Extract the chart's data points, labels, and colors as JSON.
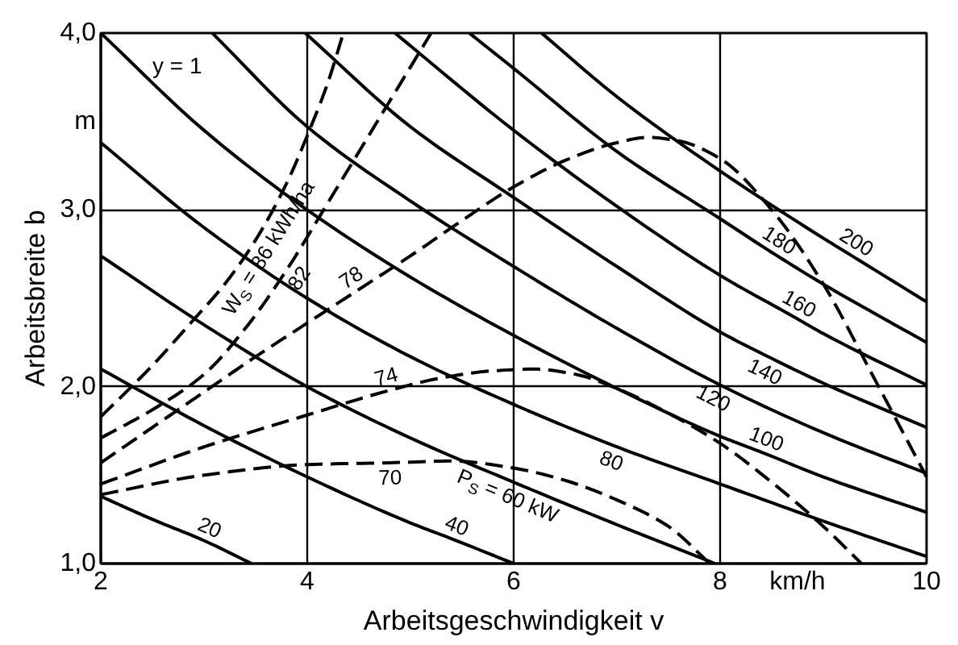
{
  "chart_data": {
    "type": "line",
    "xlabel": "Arbeitsgeschwindigkeit v",
    "ylabel": "Arbeitsbreite b",
    "xlim": [
      2,
      10
    ],
    "ylim": [
      1,
      4
    ],
    "xticks": [
      2,
      4,
      6,
      8,
      {
        "value": 8.75,
        "label": "km/h"
      },
      10
    ],
    "yticks": [
      {
        "value": 1,
        "label": "1,0"
      },
      {
        "value": 2,
        "label": "2,0"
      },
      {
        "value": 3,
        "label": "3,0"
      },
      {
        "value": 3.5,
        "label": "m"
      },
      {
        "value": 4,
        "label": "4,0"
      }
    ],
    "grid": true,
    "series": [
      {
        "color": "#000000",
        "line_style": "solid",
        "x": [
          2,
          2.5,
          3,
          3.46
        ],
        "values": [
          1.38,
          1.25,
          1.13,
          1.0
        ]
      },
      {
        "color": "#000000",
        "line_style": "solid",
        "x": [
          2,
          3,
          4,
          5,
          5.4,
          6
        ],
        "values": [
          2.1,
          1.78,
          1.49,
          1.23,
          1.14,
          1.0
        ]
      },
      {
        "color": "#000000",
        "line_style": "solid",
        "x": [
          2,
          3,
          4,
          5,
          6,
          7,
          7.95
        ],
        "values": [
          2.74,
          2.35,
          2.0,
          1.71,
          1.46,
          1.22,
          1.0
        ]
      },
      {
        "color": "#000000",
        "line_style": "solid",
        "x": [
          2,
          3,
          4,
          5,
          6,
          7,
          8,
          9,
          10
        ],
        "values": [
          3.38,
          2.9,
          2.5,
          2.17,
          1.9,
          1.66,
          1.45,
          1.24,
          1.04
        ]
      },
      {
        "color": "#000000",
        "line_style": "solid",
        "x": [
          2,
          3,
          4,
          5,
          6,
          7,
          8,
          8.4,
          9,
          10
        ],
        "values": [
          4.0,
          3.45,
          3.0,
          2.62,
          2.29,
          1.99,
          1.72,
          1.63,
          1.49,
          1.29
        ]
      },
      {
        "color": "#000000",
        "line_style": "solid",
        "x": [
          3.08,
          4,
          5,
          6,
          7,
          8,
          9,
          10
        ],
        "values": [
          4.0,
          3.47,
          3.05,
          2.68,
          2.33,
          2.01,
          1.74,
          1.51
        ]
      },
      {
        "color": "#000000",
        "line_style": "solid",
        "x": [
          3.98,
          5,
          6,
          7,
          8,
          8.5,
          9,
          10
        ],
        "values": [
          4.0,
          3.47,
          3.07,
          2.68,
          2.31,
          2.16,
          2.02,
          1.77
        ]
      },
      {
        "color": "#000000",
        "line_style": "solid",
        "x": [
          4.85,
          6,
          7,
          8,
          8.7,
          9,
          10
        ],
        "values": [
          4.0,
          3.45,
          3.02,
          2.63,
          2.4,
          2.3,
          2.01
        ]
      },
      {
        "color": "#000000",
        "line_style": "solid",
        "x": [
          5.57,
          6,
          7,
          8,
          8.5,
          9,
          10
        ],
        "values": [
          4.0,
          3.8,
          3.33,
          2.95,
          2.76,
          2.58,
          2.25
        ]
      },
      {
        "color": "#000000",
        "line_style": "solid",
        "x": [
          6.27,
          7,
          8,
          9,
          9.25,
          10
        ],
        "values": [
          4.0,
          3.64,
          3.22,
          2.84,
          2.75,
          2.48
        ]
      },
      {
        "color": "#000000",
        "line_style": "dashed",
        "x": [
          2,
          2.5,
          2.87,
          3.2,
          3.5,
          3.8,
          4.0,
          4.2,
          4.35
        ],
        "values": [
          1.83,
          2.12,
          2.36,
          2.58,
          2.83,
          3.15,
          3.42,
          3.72,
          4.0
        ]
      },
      {
        "color": "#000000",
        "line_style": "dashed",
        "x": [
          2,
          2.5,
          3,
          3.4,
          3.8,
          4.2,
          4.7,
          5.2
        ],
        "values": [
          1.71,
          1.87,
          2.07,
          2.33,
          2.66,
          3.04,
          3.52,
          4.0
        ]
      },
      {
        "color": "#000000",
        "line_style": "dashed",
        "x": [
          2,
          2.5,
          3,
          3.5,
          4,
          4.5,
          5,
          5.5,
          6,
          6.5,
          7,
          7.3,
          7.6,
          8,
          8.5,
          9,
          9.5,
          10
        ],
        "values": [
          1.57,
          1.77,
          1.97,
          2.17,
          2.36,
          2.55,
          2.74,
          2.94,
          3.13,
          3.28,
          3.38,
          3.41,
          3.39,
          3.29,
          3.0,
          2.58,
          2.04,
          1.49
        ]
      },
      {
        "color": "#000000",
        "line_style": "dashed",
        "x": [
          2,
          3,
          4,
          4.8,
          5.3,
          5.8,
          6.2,
          6.6,
          7,
          7.5,
          8,
          8.5,
          9,
          9.37
        ],
        "values": [
          1.45,
          1.66,
          1.84,
          1.98,
          2.05,
          2.09,
          2.1,
          2.07,
          1.99,
          1.85,
          1.68,
          1.46,
          1.21,
          1.0
        ]
      },
      {
        "color": "#000000",
        "line_style": "dashed",
        "x": [
          2,
          3,
          4,
          4.8,
          5.4,
          6,
          6.5,
          7,
          7.5,
          7.9
        ],
        "values": [
          1.39,
          1.5,
          1.56,
          1.57,
          1.58,
          1.54,
          1.47,
          1.36,
          1.21,
          1.0
        ]
      }
    ],
    "annotations": [
      "y = 1",
      {
        "text": "20",
        "x": 3,
        "y": 1.13
      },
      {
        "text": "40",
        "x": 5.4,
        "y": 1.14
      },
      {
        "text": "P$_{S}$ = 60 kW",
        "x": 6,
        "y": 1.46
      },
      {
        "text": "80",
        "x": 7,
        "y": 1.66
      },
      {
        "text": "100",
        "x": 8.4,
        "y": 1.63
      },
      {
        "text": "120",
        "x": 8,
        "y": 2.01
      },
      {
        "text": "140",
        "x": 8.5,
        "y": 2.16
      },
      {
        "text": "160",
        "x": 8.7,
        "y": 2.4
      },
      {
        "text": "180",
        "x": 8.5,
        "y": 2.76
      },
      {
        "text": "200",
        "x": 9.25,
        "y": 2.75
      },
      {
        "text": "W$_{S}$ = 86 kWh/ha",
        "x": 3.5,
        "y": 2.83
      },
      {
        "text": "82",
        "x": 3.8,
        "y": 2.66
      },
      {
        "text": "78",
        "x": 4.5,
        "y": 2.55
      },
      {
        "text": "74",
        "x": 4.8,
        "y": 1.98
      },
      {
        "text": "70",
        "x": 4.8,
        "y": 1.57
      }
    ]
  }
}
